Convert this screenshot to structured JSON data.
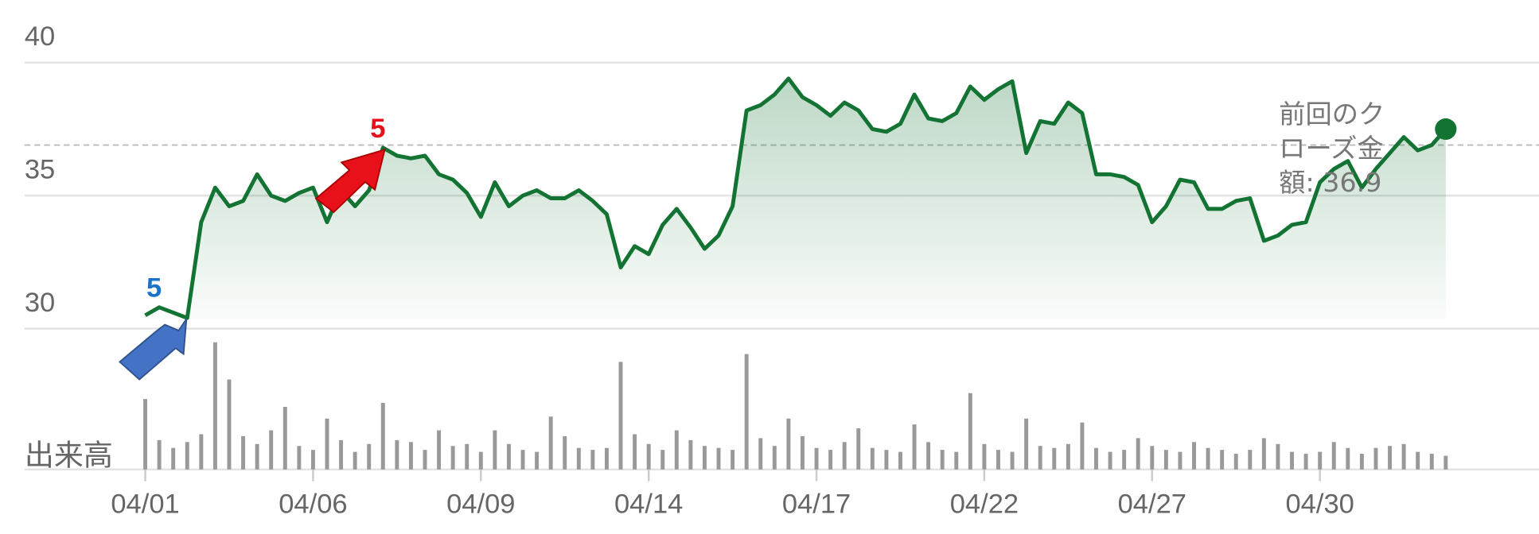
{
  "chart_data": {
    "type": "line",
    "ylim": [
      30,
      40
    ],
    "yticks": [
      30,
      35,
      40
    ],
    "xlim": [
      0,
      93
    ],
    "xticks": [
      {
        "value": 0,
        "label": "04/01"
      },
      {
        "value": 12,
        "label": "04/06"
      },
      {
        "value": 24,
        "label": "04/09"
      },
      {
        "value": 36,
        "label": "04/14"
      },
      {
        "value": 48,
        "label": "04/17"
      },
      {
        "value": 60,
        "label": "04/22"
      },
      {
        "value": 72,
        "label": "04/27"
      },
      {
        "value": 84,
        "label": "04/30"
      }
    ],
    "grid": true,
    "color": "#137333",
    "values": [
      30.5,
      30.8,
      30.6,
      30.4,
      34.0,
      35.3,
      34.6,
      34.8,
      35.8,
      35.0,
      34.8,
      35.1,
      35.3,
      34.0,
      35.2,
      34.6,
      35.2,
      36.8,
      36.5,
      36.4,
      36.5,
      35.8,
      35.6,
      35.1,
      34.2,
      35.5,
      34.6,
      35.0,
      35.2,
      34.9,
      34.9,
      35.2,
      34.8,
      34.3,
      32.3,
      33.1,
      32.8,
      33.9,
      34.5,
      33.8,
      33.0,
      33.5,
      34.6,
      38.2,
      38.4,
      38.8,
      39.4,
      38.7,
      38.4,
      38.0,
      38.5,
      38.2,
      37.5,
      37.4,
      37.7,
      38.8,
      37.9,
      37.8,
      38.1,
      39.1,
      38.6,
      39.0,
      39.3,
      36.6,
      37.8,
      37.7,
      38.5,
      38.1,
      35.8,
      35.8,
      35.7,
      35.4,
      34.0,
      34.6,
      35.6,
      35.5,
      34.5,
      34.5,
      34.8,
      34.9,
      33.3,
      33.5,
      33.9,
      34.0,
      35.5,
      36.0,
      36.3,
      35.3,
      36.0,
      36.6,
      37.2,
      36.7,
      36.9,
      37.5
    ],
    "prev_close_label": "前回のクローズ金額:",
    "prev_close": 36.9,
    "volume_label": "出来高",
    "volume_color": "#999999",
    "volume": [
      72,
      30,
      22,
      28,
      36,
      130,
      92,
      34,
      26,
      40,
      64,
      24,
      20,
      52,
      30,
      18,
      26,
      68,
      30,
      28,
      20,
      40,
      24,
      26,
      18,
      40,
      26,
      20,
      18,
      54,
      34,
      22,
      20,
      22,
      110,
      36,
      26,
      20,
      40,
      30,
      24,
      22,
      20,
      118,
      32,
      24,
      52,
      34,
      22,
      20,
      28,
      42,
      22,
      20,
      18,
      46,
      28,
      20,
      18,
      78,
      26,
      20,
      18,
      52,
      24,
      22,
      26,
      48,
      22,
      18,
      20,
      32,
      24,
      20,
      18,
      28,
      22,
      20,
      16,
      20,
      32,
      26,
      18,
      16,
      18,
      28,
      22,
      16,
      22,
      24,
      26,
      18,
      16,
      14
    ],
    "annotations": [
      {
        "text": "5",
        "color": "#1a73c8"
      },
      {
        "text": "5",
        "color": "#e8101a"
      }
    ]
  }
}
